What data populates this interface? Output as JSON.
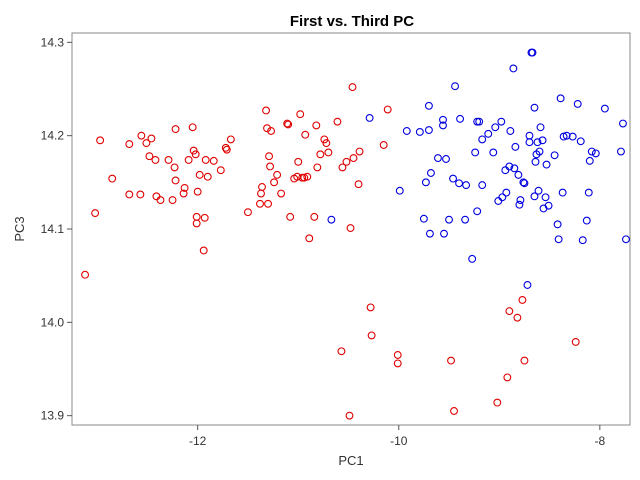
{
  "chart_data": {
    "type": "scatter",
    "title": "First vs. Third PC",
    "xlabel": "PC1",
    "ylabel": "PC3",
    "xlim": [
      -13.25,
      -7.7
    ],
    "ylim": [
      13.89,
      14.31
    ],
    "x_ticks": [
      -12,
      -10,
      -8
    ],
    "y_ticks": [
      13.9,
      14.0,
      14.1,
      14.2,
      14.3
    ],
    "x_tick_labels": [
      "-12",
      "-10",
      "-8"
    ],
    "y_tick_labels": [
      "13.9",
      "14.0",
      "14.1",
      "14.2",
      "14.3"
    ],
    "grid": false,
    "marker": "open-circle",
    "series": [
      {
        "color": "#e00000",
        "points": [
          [
            -13.12,
            14.051
          ],
          [
            -13.02,
            14.117
          ],
          [
            -12.97,
            14.195
          ],
          [
            -12.85,
            14.154
          ],
          [
            -12.68,
            14.191
          ],
          [
            -12.68,
            14.137
          ],
          [
            -12.57,
            14.137
          ],
          [
            -12.56,
            14.2
          ],
          [
            -12.51,
            14.192
          ],
          [
            -12.48,
            14.178
          ],
          [
            -12.46,
            14.197
          ],
          [
            -12.42,
            14.174
          ],
          [
            -12.41,
            14.135
          ],
          [
            -12.37,
            14.131
          ],
          [
            -12.29,
            14.174
          ],
          [
            -12.25,
            14.131
          ],
          [
            -12.23,
            14.166
          ],
          [
            -12.22,
            14.152
          ],
          [
            -12.22,
            14.207
          ],
          [
            -12.14,
            14.138
          ],
          [
            -12.13,
            14.144
          ],
          [
            -12.09,
            14.174
          ],
          [
            -12.05,
            14.209
          ],
          [
            -12.04,
            14.184
          ],
          [
            -12.02,
            14.18
          ],
          [
            -12.01,
            14.106
          ],
          [
            -12.01,
            14.113
          ],
          [
            -12.0,
            14.14
          ],
          [
            -11.98,
            14.158
          ],
          [
            -11.94,
            14.077
          ],
          [
            -11.93,
            14.112
          ],
          [
            -11.92,
            14.174
          ],
          [
            -11.9,
            14.156
          ],
          [
            -11.84,
            14.173
          ],
          [
            -11.77,
            14.163
          ],
          [
            -11.72,
            14.187
          ],
          [
            -11.71,
            14.185
          ],
          [
            -11.67,
            14.196
          ],
          [
            -11.5,
            14.118
          ],
          [
            -11.38,
            14.127
          ],
          [
            -11.37,
            14.138
          ],
          [
            -11.36,
            14.145
          ],
          [
            -11.32,
            14.227
          ],
          [
            -11.31,
            14.208
          ],
          [
            -11.3,
            14.127
          ],
          [
            -11.29,
            14.178
          ],
          [
            -11.28,
            14.167
          ],
          [
            -11.27,
            14.205
          ],
          [
            -11.24,
            14.15
          ],
          [
            -11.21,
            14.158
          ],
          [
            -11.17,
            14.138
          ],
          [
            -11.11,
            14.213
          ],
          [
            -11.1,
            14.212
          ],
          [
            -11.08,
            14.113
          ],
          [
            -11.04,
            14.154
          ],
          [
            -11.01,
            14.156
          ],
          [
            -11.0,
            14.172
          ],
          [
            -10.98,
            14.223
          ],
          [
            -10.96,
            14.155
          ],
          [
            -10.94,
            14.155
          ],
          [
            -10.93,
            14.201
          ],
          [
            -10.91,
            14.156
          ],
          [
            -10.89,
            14.09
          ],
          [
            -10.84,
            14.113
          ],
          [
            -10.82,
            14.211
          ],
          [
            -10.81,
            14.166
          ],
          [
            -10.78,
            14.18
          ],
          [
            -10.74,
            14.196
          ],
          [
            -10.72,
            14.192
          ],
          [
            -10.7,
            14.182
          ],
          [
            -10.61,
            14.215
          ],
          [
            -10.57,
            13.969
          ],
          [
            -10.56,
            14.166
          ],
          [
            -10.52,
            14.172
          ],
          [
            -10.49,
            13.9
          ],
          [
            -10.48,
            14.101
          ],
          [
            -10.46,
            14.252
          ],
          [
            -10.45,
            14.176
          ],
          [
            -10.4,
            14.148
          ],
          [
            -10.39,
            14.183
          ],
          [
            -10.28,
            14.016
          ],
          [
            -10.27,
            13.986
          ],
          [
            -10.15,
            14.19
          ],
          [
            -10.11,
            14.228
          ],
          [
            -10.01,
            13.965
          ],
          [
            -10.01,
            13.956
          ],
          [
            -9.48,
            13.959
          ],
          [
            -9.45,
            13.905
          ],
          [
            -9.02,
            13.914
          ],
          [
            -8.92,
            13.941
          ],
          [
            -8.9,
            14.012
          ],
          [
            -8.82,
            14.005
          ],
          [
            -8.77,
            14.024
          ],
          [
            -8.75,
            13.959
          ],
          [
            -8.24,
            13.979
          ]
        ]
      },
      {
        "color": "#0000e0",
        "points": [
          [
            -10.67,
            14.11
          ],
          [
            -10.29,
            14.219
          ],
          [
            -9.99,
            14.141
          ],
          [
            -9.92,
            14.205
          ],
          [
            -9.79,
            14.204
          ],
          [
            -9.75,
            14.111
          ],
          [
            -9.73,
            14.15
          ],
          [
            -9.7,
            14.206
          ],
          [
            -9.7,
            14.232
          ],
          [
            -9.69,
            14.095
          ],
          [
            -9.68,
            14.16
          ],
          [
            -9.61,
            14.176
          ],
          [
            -9.56,
            14.211
          ],
          [
            -9.56,
            14.217
          ],
          [
            -9.55,
            14.095
          ],
          [
            -9.53,
            14.175
          ],
          [
            -9.5,
            14.11
          ],
          [
            -9.46,
            14.154
          ],
          [
            -9.44,
            14.253
          ],
          [
            -9.4,
            14.149
          ],
          [
            -9.39,
            14.218
          ],
          [
            -9.34,
            14.11
          ],
          [
            -9.33,
            14.147
          ],
          [
            -9.27,
            14.068
          ],
          [
            -9.24,
            14.182
          ],
          [
            -9.22,
            14.215
          ],
          [
            -9.22,
            14.119
          ],
          [
            -9.2,
            14.215
          ],
          [
            -9.17,
            14.147
          ],
          [
            -9.17,
            14.196
          ],
          [
            -9.11,
            14.202
          ],
          [
            -9.06,
            14.182
          ],
          [
            -9.04,
            14.209
          ],
          [
            -9.01,
            14.13
          ],
          [
            -8.98,
            14.215
          ],
          [
            -8.97,
            14.134
          ],
          [
            -8.94,
            14.163
          ],
          [
            -8.93,
            14.139
          ],
          [
            -8.9,
            14.167
          ],
          [
            -8.89,
            14.205
          ],
          [
            -8.86,
            14.272
          ],
          [
            -8.85,
            14.165
          ],
          [
            -8.84,
            14.188
          ],
          [
            -8.81,
            14.158
          ],
          [
            -8.8,
            14.126
          ],
          [
            -8.79,
            14.131
          ],
          [
            -8.76,
            14.15
          ],
          [
            -8.75,
            14.149
          ],
          [
            -8.72,
            14.04
          ],
          [
            -8.7,
            14.193
          ],
          [
            -8.68,
            14.289
          ],
          [
            -8.67,
            14.289
          ],
          [
            -8.65,
            14.135
          ],
          [
            -8.65,
            14.23
          ],
          [
            -8.64,
            14.172
          ],
          [
            -8.63,
            14.18
          ],
          [
            -8.62,
            14.193
          ],
          [
            -8.61,
            14.141
          ],
          [
            -8.6,
            14.183
          ],
          [
            -8.59,
            14.209
          ],
          [
            -8.56,
            14.122
          ],
          [
            -8.54,
            14.134
          ],
          [
            -8.53,
            14.169
          ],
          [
            -8.51,
            14.125
          ],
          [
            -8.45,
            14.179
          ],
          [
            -8.42,
            14.105
          ],
          [
            -8.41,
            14.089
          ],
          [
            -8.39,
            14.24
          ],
          [
            -8.37,
            14.139
          ],
          [
            -8.36,
            14.199
          ],
          [
            -8.33,
            14.2
          ],
          [
            -8.27,
            14.199
          ],
          [
            -8.22,
            14.234
          ],
          [
            -8.19,
            14.194
          ],
          [
            -8.17,
            14.088
          ],
          [
            -8.13,
            14.109
          ],
          [
            -8.11,
            14.139
          ],
          [
            -8.1,
            14.173
          ],
          [
            -8.08,
            14.183
          ],
          [
            -8.04,
            14.181
          ],
          [
            -7.95,
            14.229
          ],
          [
            -7.79,
            14.183
          ],
          [
            -7.77,
            14.213
          ],
          [
            -7.74,
            14.089
          ],
          [
            -8.7,
            14.2
          ],
          [
            -8.57,
            14.195
          ]
        ]
      }
    ]
  }
}
